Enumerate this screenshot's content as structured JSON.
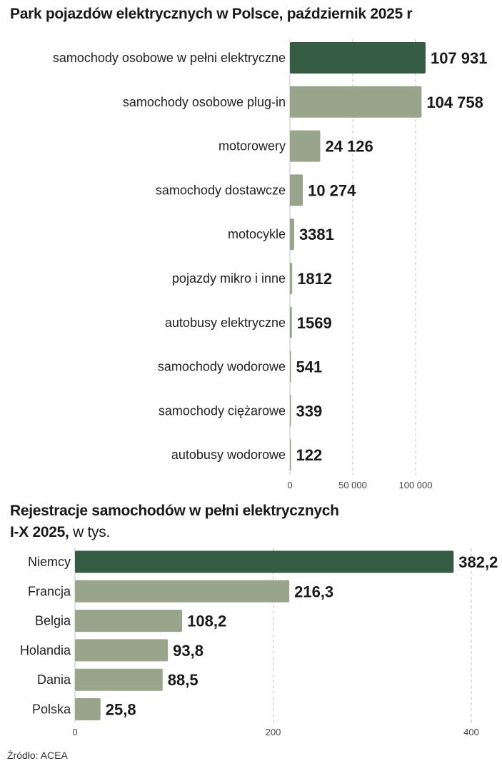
{
  "chart_data": [
    {
      "type": "bar",
      "orientation": "horizontal",
      "title": "Park pojazdów elektrycznych w Polsce, październik 2025 r",
      "categories": [
        "samochody osobowe w pełni elektryczne",
        "samochody osobowe plug-in",
        "motorowery",
        "samochody dostawcze",
        "motocykle",
        "pojazdy mikro i inne",
        "autobusy elektryczne",
        "samochody wodorowe",
        "samochody ciężarowe",
        "autobusy wodorowe"
      ],
      "values": [
        107931,
        104758,
        24126,
        10274,
        3381,
        1812,
        1569,
        541,
        339,
        122
      ],
      "value_labels": [
        "107 931",
        "104 758",
        "24 126",
        "10 274",
        "3381",
        "1812",
        "1569",
        "541",
        "339",
        "122"
      ],
      "xlim": [
        0,
        100000
      ],
      "ticks": [
        0,
        50000,
        100000
      ],
      "tick_labels": [
        "0",
        "50 000",
        "100 000"
      ],
      "grid": true,
      "highlight_index": 0,
      "colors": {
        "highlight": "#335c43",
        "bar": "#98a58a",
        "grid": "#bfbfbf"
      }
    },
    {
      "type": "bar",
      "orientation": "horizontal",
      "title": "Rejestracje samochodów w pełni elektrycznych",
      "title_line2": "I-X 2025,",
      "unit": " w tys.",
      "categories": [
        "Niemcy",
        "Francja",
        "Belgia",
        "Holandia",
        "Dania",
        "Polska"
      ],
      "values": [
        382.2,
        216.3,
        108.2,
        93.8,
        88.5,
        25.8
      ],
      "value_labels": [
        "382,2",
        "216,3",
        "108,2",
        "93,8",
        "88,5",
        "25,8"
      ],
      "xlim": [
        0,
        400
      ],
      "ticks": [
        0,
        200,
        400
      ],
      "tick_labels": [
        "0",
        "200",
        "400"
      ],
      "grid": true,
      "highlight_index": 0,
      "colors": {
        "highlight": "#335c43",
        "bar": "#98a58a",
        "grid": "#bfbfbf"
      }
    }
  ],
  "source": "Źródło: ACEA"
}
